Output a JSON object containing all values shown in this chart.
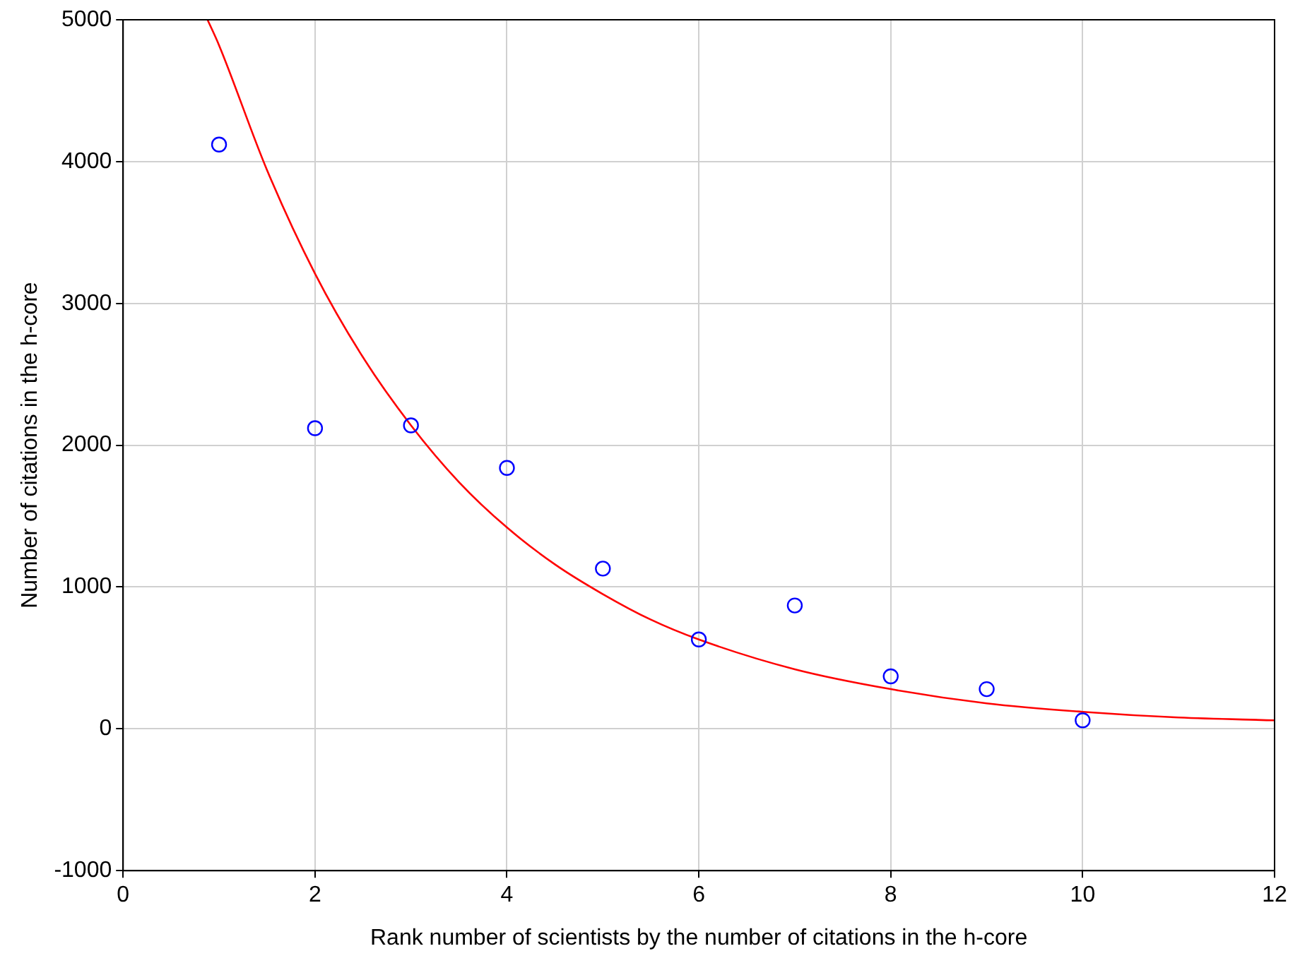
{
  "chart_data": {
    "type": "scatter",
    "xlabel": "Rank number of scientists by the number of citations in the h-core",
    "ylabel": "Number of citations in the h-core",
    "xlim": [
      0,
      12
    ],
    "xticks": [
      0,
      2,
      4,
      6,
      8,
      10,
      12
    ],
    "ylim": [
      -1000,
      5000
    ],
    "yticks": [
      -1000,
      0,
      1000,
      2000,
      3000,
      4000,
      5000
    ],
    "grid": true,
    "legend": false,
    "marker": "circle",
    "series": [
      {
        "color": "#0000ff",
        "x": [
          1,
          2,
          3,
          4,
          5,
          6,
          7,
          8,
          9,
          10
        ],
        "values": [
          4120,
          2120,
          2140,
          1840,
          1130,
          630,
          870,
          370,
          280,
          60
        ]
      },
      {
        "type": "line",
        "color": "#ff0000",
        "marker": "none",
        "line_style": "solid",
        "x": [
          0.88,
          1,
          1.5,
          2,
          2.5,
          3,
          3.5,
          4,
          4.5,
          5,
          5.5,
          6,
          7,
          8,
          9,
          10,
          11,
          12
        ],
        "values": [
          5000,
          4820,
          3940,
          3210,
          2620,
          2140,
          1740,
          1420,
          1160,
          950,
          770,
          630,
          420,
          280,
          180,
          120,
          80,
          60
        ]
      }
    ]
  }
}
